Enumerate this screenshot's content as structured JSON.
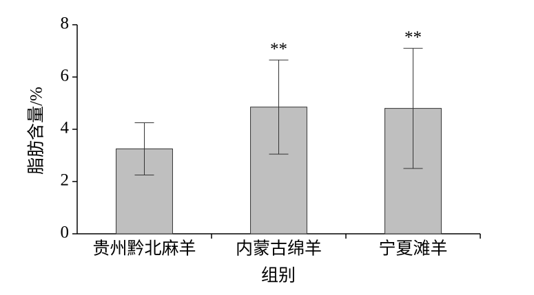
{
  "chart_data": {
    "type": "bar",
    "xlabel": "组别",
    "ylabel": "脂肪含量/%",
    "categories": [
      "贵州黔北麻羊",
      "内蒙古绵羊",
      "宁夏滩羊"
    ],
    "values": [
      3.25,
      4.85,
      4.8
    ],
    "errors": [
      1.0,
      1.8,
      2.3
    ],
    "annotations": [
      null,
      "**",
      "**"
    ],
    "color": "#bfbfbf",
    "ylim": [
      0,
      8
    ],
    "yticks": [
      0,
      2,
      4,
      6,
      8
    ],
    "grid": false
  }
}
